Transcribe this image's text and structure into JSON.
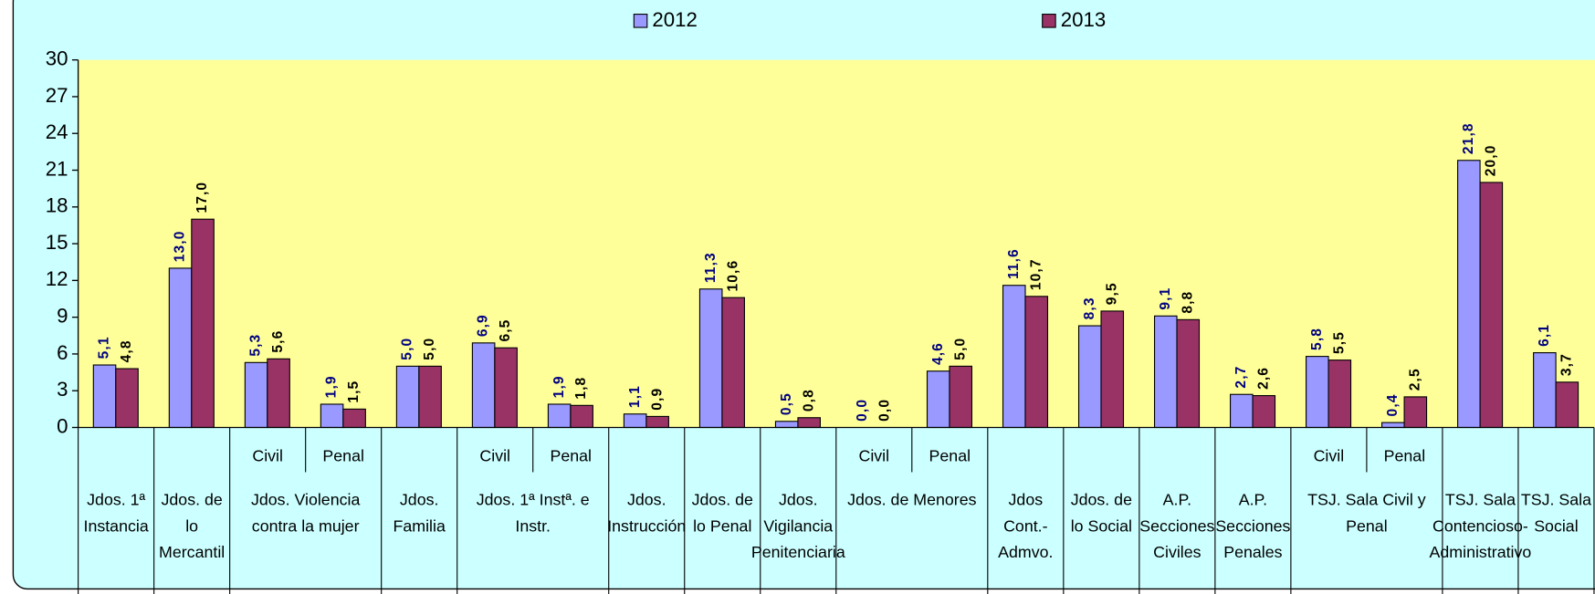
{
  "chart_data": {
    "type": "bar",
    "legend": "top",
    "grid": false,
    "ylim": [
      0,
      30
    ],
    "yticks": [
      0,
      3,
      6,
      9,
      12,
      15,
      18,
      21,
      24,
      27,
      30
    ],
    "groups": [
      {
        "label": [
          "Jdos. 1ª",
          "Instancia"
        ]
      },
      {
        "label": [
          "Jdos. de",
          "lo",
          "Mercantil"
        ]
      },
      {
        "label": [
          "Jdos. Violencia",
          "contra la mujer"
        ],
        "categories": [
          "Civil",
          "Penal"
        ]
      },
      {
        "label": [
          "Jdos.",
          "Familia"
        ]
      },
      {
        "label": [
          "Jdos. 1ª Instª. e",
          "Instr."
        ],
        "categories": [
          "Civil",
          "Penal"
        ]
      },
      {
        "label": [
          "Jdos.",
          "Instrucción"
        ]
      },
      {
        "label": [
          "Jdos. de",
          "lo Penal"
        ]
      },
      {
        "label": [
          "Jdos.",
          "Vigilancia",
          "Penitenciaria"
        ]
      },
      {
        "label": [
          "Jdos. de Menores"
        ],
        "categories": [
          "Civil",
          "Penal"
        ]
      },
      {
        "label": [
          "Jdos",
          "Cont.-",
          "Admvo."
        ]
      },
      {
        "label": [
          "Jdos. de",
          "lo Social"
        ]
      },
      {
        "label": [
          "A.P.",
          "Secciones",
          "Civiles"
        ]
      },
      {
        "label": [
          "A.P.",
          "Secciones",
          "Penales"
        ]
      },
      {
        "label": [
          "TSJ. Sala Civil y",
          "Penal"
        ],
        "categories": [
          "Civil",
          "Penal"
        ]
      },
      {
        "label": [
          "TSJ. Sala",
          "Contencioso-",
          "Administrativo"
        ]
      },
      {
        "label": [
          "TSJ. Sala",
          "Social"
        ]
      }
    ],
    "series": [
      {
        "name": "2012",
        "color": "#9999ff",
        "label_color": "#000080",
        "values": [
          5.1,
          13.0,
          5.3,
          1.9,
          5.0,
          6.9,
          1.9,
          1.1,
          11.3,
          0.5,
          0.0,
          4.6,
          11.6,
          8.3,
          9.1,
          2.7,
          5.8,
          0.4,
          21.8,
          6.1
        ],
        "value_labels": [
          "5,1",
          "13,0",
          "5,3",
          "1,9",
          "5,0",
          "6,9",
          "1,9",
          "1,1",
          "11,3",
          "0,5",
          "0,0",
          "4,6",
          "11,6",
          "8,3",
          "9,1",
          "2,7",
          "5,8",
          "0,4",
          "21,8",
          "6,1"
        ]
      },
      {
        "name": "2013",
        "color": "#993366",
        "label_color": "#000000",
        "values": [
          4.8,
          17.0,
          5.6,
          1.5,
          5.0,
          6.5,
          1.8,
          0.9,
          10.6,
          0.8,
          0.0,
          5.0,
          10.7,
          9.5,
          8.8,
          2.6,
          5.5,
          2.5,
          20.0,
          3.7
        ],
        "value_labels": [
          "4,8",
          "17,0",
          "5,6",
          "1,5",
          "5,0",
          "6,5",
          "1,8",
          "0,9",
          "10,6",
          "0,8",
          "0,0",
          "5,0",
          "10,7",
          "9,5",
          "8,8",
          "2,6",
          "5,5",
          "2,5",
          "20,0",
          "3,7"
        ]
      }
    ]
  }
}
